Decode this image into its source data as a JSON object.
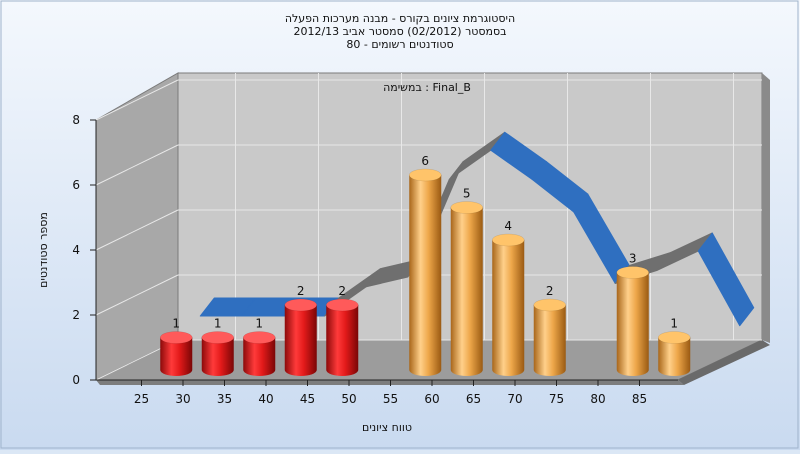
{
  "chart_data": {
    "type": "bar",
    "title_lines": [
      "היסטוגרמת ציונים בקורס - מבנה מערכות הפעלה",
      "בסמסטר  (02/2012)  סמסטר אביב 2012/13",
      "סטודנטים רשומים - 80"
    ],
    "subtitle": "במשימה : Final_B",
    "xlabel": "טווח ציונים",
    "ylabel": "מספר סטודנטים",
    "x_ticks": [
      25,
      30,
      35,
      40,
      45,
      50,
      55,
      60,
      65,
      70,
      75,
      80,
      85
    ],
    "y_ticks": [
      0,
      2,
      4,
      6,
      8
    ],
    "ylim": [
      0,
      8
    ],
    "bars": [
      {
        "x": 27.5,
        "value": 1,
        "label": "1",
        "color": "#e02020"
      },
      {
        "x": 32.5,
        "value": 1,
        "label": "1",
        "color": "#e02020"
      },
      {
        "x": 37.5,
        "value": 1,
        "label": "1",
        "color": "#e02020"
      },
      {
        "x": 42.5,
        "value": 2,
        "label": "2",
        "color": "#e02020"
      },
      {
        "x": 47.5,
        "value": 2,
        "label": "2",
        "color": "#e02020"
      },
      {
        "x": 57.5,
        "value": 6,
        "label": "6",
        "color": "#f0a840"
      },
      {
        "x": 62.5,
        "value": 5,
        "label": "5",
        "color": "#f0a840"
      },
      {
        "x": 67.5,
        "value": 4,
        "label": "4",
        "color": "#f0a840"
      },
      {
        "x": 72.5,
        "value": 2,
        "label": "2",
        "color": "#f0a840"
      },
      {
        "x": 82.5,
        "value": 3,
        "label": "3",
        "color": "#f0a840"
      },
      {
        "x": 87.5,
        "value": 1,
        "label": "1",
        "color": "#f0a840"
      }
    ],
    "trend": {
      "x": [
        27.5,
        32.5,
        37.5,
        42.5,
        47.5,
        52.5,
        57.5,
        62.5,
        67.5,
        72.5,
        77.5,
        82.5,
        87.5,
        92.5
      ],
      "values": [
        1.6,
        1.6,
        1.6,
        1.6,
        2.5,
        2.8,
        5.8,
        6.7,
        5.8,
        4.8,
        2.6,
        3.0,
        3.6,
        1.3
      ],
      "color": "#2f6fc0"
    }
  }
}
